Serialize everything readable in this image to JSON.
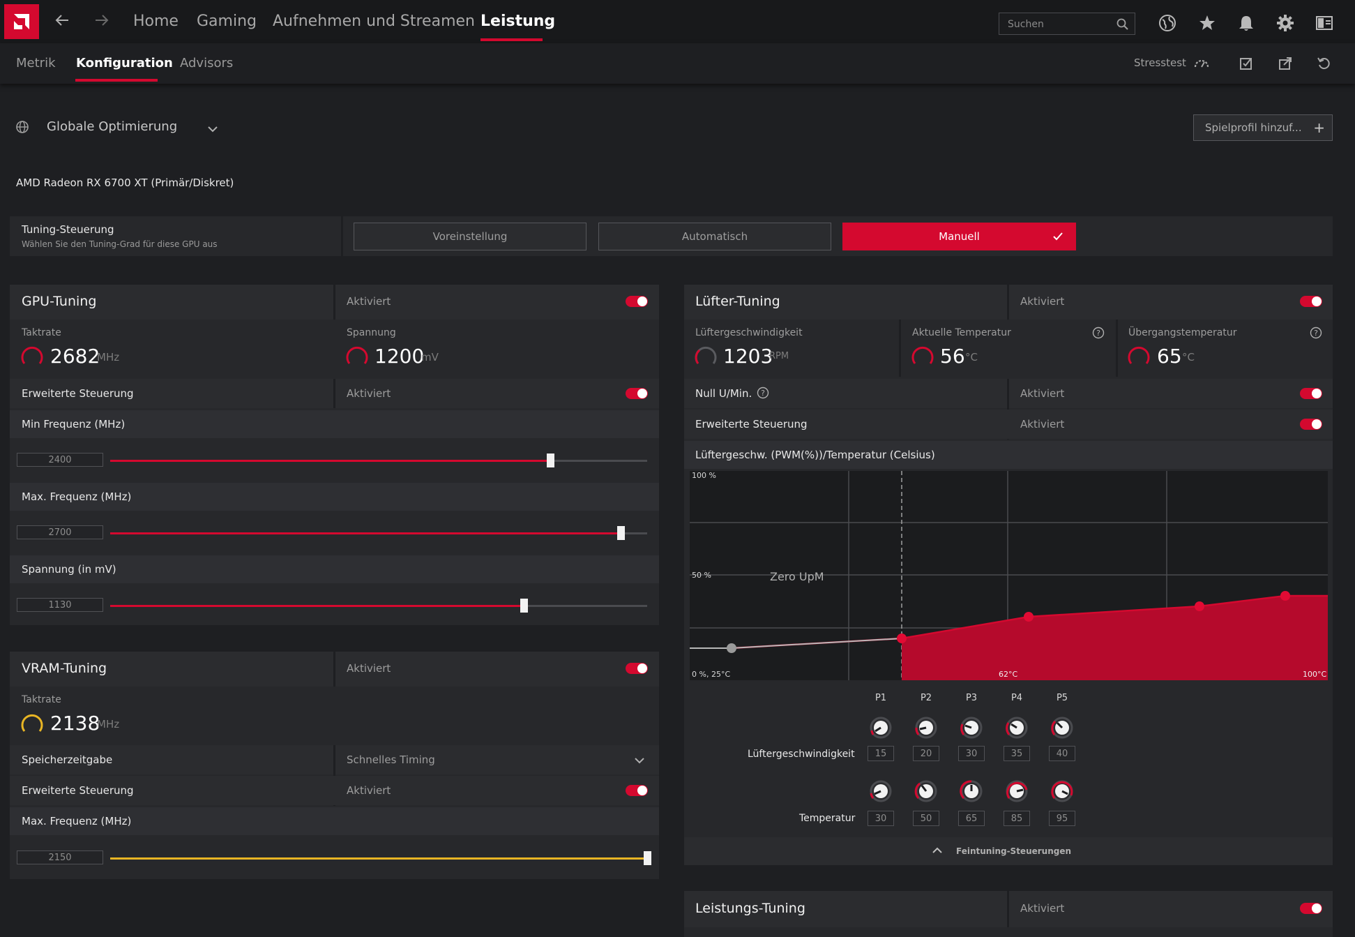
{
  "topbar": {
    "nav": [
      "Home",
      "Gaming",
      "Aufnehmen und Streamen",
      "Leistung"
    ],
    "search_placeholder": "Suchen"
  },
  "subnav": {
    "tabs": [
      "Metrik",
      "Konfiguration",
      "Advisors"
    ],
    "stresstest_label": "Stresstest"
  },
  "profile": {
    "name": "Globale Optimierung",
    "add_game_profile": "Spielprofil hinzuf..."
  },
  "gpu_name": "AMD Radeon RX 6700 XT (Primär/Diskret)",
  "tuning_control": {
    "title": "Tuning-Steuerung",
    "subtitle": "Wählen Sie den Tuning-Grad für diese GPU aus",
    "options": [
      "Voreinstellung",
      "Automatisch",
      "Manuell"
    ],
    "selected": "Manuell"
  },
  "gpu_tuning": {
    "title": "GPU-Tuning",
    "status": "Aktiviert",
    "clock_label": "Taktrate",
    "clock_value": "2682",
    "clock_unit": "MHz",
    "voltage_label": "Spannung",
    "voltage_value": "1200",
    "voltage_unit": "mV",
    "advanced_label": "Erweiterte Steuerung",
    "advanced_status": "Aktiviert",
    "min_freq_label": "Min Frequenz (MHz)",
    "min_freq_value": "2400",
    "min_freq_level": 0.82,
    "max_freq_label": "Max. Frequenz (MHz)",
    "max_freq_value": "2700",
    "max_freq_level": 0.95,
    "voltage_slider_label": "Spannung (in mV)",
    "voltage_slider_value": "1130",
    "voltage_slider_level": 0.77
  },
  "vram_tuning": {
    "title": "VRAM-Tuning",
    "status": "Aktiviert",
    "clock_label": "Taktrate",
    "clock_value": "2138",
    "clock_unit": "MHz",
    "memory_timing_label": "Speicherzeitgabe",
    "memory_timing_value": "Schnelles Timing",
    "advanced_label": "Erweiterte Steuerung",
    "advanced_status": "Aktiviert",
    "max_freq_label": "Max. Frequenz (MHz)",
    "max_freq_value": "2150",
    "max_freq_level": 1.0
  },
  "fan_tuning": {
    "title": "Lüfter-Tuning",
    "status": "Aktiviert",
    "fan_speed_label": "Lüftergeschwindigkeit",
    "fan_speed_value": "1203",
    "fan_speed_unit": "RPM",
    "current_temp_label": "Aktuelle Temperatur",
    "current_temp_value": "56",
    "current_temp_unit": "°C",
    "junction_temp_label": "Übergangstemperatur",
    "junction_temp_value": "65",
    "junction_temp_unit": "°C",
    "zero_rpm_label": "Null U/Min.",
    "zero_rpm_status": "Aktiviert",
    "advanced_label": "Erweiterte Steuerung",
    "advanced_status": "Aktiviert",
    "curve_title": "Lüftergeschw. (PWM(%))/Temperatur (Celsius)",
    "curve_labels": {
      "y_top": "100 %",
      "y_mid": "50 %",
      "origin": "0 %, 25°C",
      "x_mid": "62°C",
      "x_max": "100°C",
      "zero_rpm": "Zero UpM"
    },
    "points": [
      "P1",
      "P2",
      "P3",
      "P4",
      "P5"
    ],
    "speed_row_label": "Lüftergeschwindigkeit",
    "speed_values": [
      "15",
      "20",
      "30",
      "35",
      "40"
    ],
    "temp_row_label": "Temperatur",
    "temp_values": [
      "30",
      "50",
      "65",
      "85",
      "95"
    ],
    "fine_tuning_label": "Feintuning-Steuerungen"
  },
  "performance_tuning": {
    "title": "Leistungs-Tuning",
    "status": "Aktiviert"
  },
  "colors": {
    "accent": "#d4092f",
    "vram_accent": "#e8b524"
  }
}
